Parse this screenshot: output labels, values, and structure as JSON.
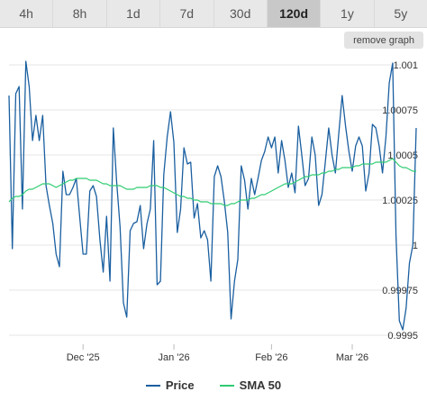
{
  "tabs": [
    {
      "label": "4h",
      "active": false
    },
    {
      "label": "8h",
      "active": false
    },
    {
      "label": "1d",
      "active": false
    },
    {
      "label": "7d",
      "active": false
    },
    {
      "label": "30d",
      "active": false
    },
    {
      "label": "120d",
      "active": true
    },
    {
      "label": "1y",
      "active": false
    },
    {
      "label": "5y",
      "active": false
    }
  ],
  "remove_graph_label": "remove graph",
  "colors": {
    "price": "#1a5fa0",
    "sma": "#2ecc71",
    "grid": "#e6e6e6",
    "active_tab": "#c8c8c8"
  },
  "chart_data": {
    "type": "line",
    "x_tick_labels": [
      "Dec '25",
      "Jan '26",
      "Feb '26",
      "Mar '26"
    ],
    "x_ticks_index": [
      22,
      49,
      78,
      102
    ],
    "y_tick_labels": [
      "1.001",
      "1.00075",
      "1.0005",
      "1.00025",
      "1",
      "0.99975",
      "0.9995"
    ],
    "y_ticks": [
      1.001,
      1.00075,
      1.0005,
      1.00025,
      1.0,
      0.99975,
      0.9995
    ],
    "ylim": [
      0.99945,
      1.00105
    ],
    "grid": true,
    "legend": "bottom",
    "series": [
      {
        "name": "Price",
        "values": [
          1.00083,
          0.99998,
          1.00084,
          1.00088,
          1.0002,
          1.00102,
          1.00088,
          1.00058,
          1.00072,
          1.00058,
          1.00072,
          1.00033,
          1.00022,
          1.00012,
          0.99995,
          0.99988,
          1.00041,
          1.00028,
          1.00028,
          1.00032,
          1.00037,
          1.00016,
          0.99995,
          0.99995,
          1.0003,
          1.00033,
          1.00027,
          1.00003,
          0.99985,
          1.00016,
          0.9998,
          1.00065,
          1.00035,
          1.0001,
          0.99968,
          0.9996,
          1.00008,
          1.00012,
          1.00013,
          1.00022,
          0.99998,
          1.00012,
          1.0002,
          1.00058,
          0.99978,
          0.9998,
          1.00039,
          1.0006,
          1.00074,
          1.00057,
          1.00007,
          1.0002,
          1.00054,
          1.00045,
          1.00046,
          1.00015,
          1.00023,
          1.00004,
          1.00008,
          1.00003,
          0.9998,
          1.00038,
          1.00044,
          1.00038,
          1.00024,
          1.00007,
          0.99959,
          0.9998,
          0.99992,
          1.00044,
          1.00036,
          1.0002,
          1.00037,
          1.00028,
          1.00037,
          1.00047,
          1.00052,
          1.0006,
          1.00054,
          1.0006,
          1.0004,
          1.00058,
          1.00047,
          1.00032,
          1.0004,
          1.00029,
          1.00066,
          1.0005,
          1.00033,
          1.00037,
          1.0006,
          1.0005,
          1.00022,
          1.00028,
          1.00046,
          1.00065,
          1.0005,
          1.0004,
          1.00062,
          1.00083,
          1.00066,
          1.00052,
          1.00041,
          1.00055,
          1.0006,
          1.00055,
          1.0003,
          1.0004,
          1.00067,
          1.00065,
          1.00055,
          1.0004,
          1.0006,
          1.0009,
          1.00101,
          1.00005,
          0.99958,
          0.99953,
          0.99965,
          0.9999,
          1.0,
          1.00065
        ]
      },
      {
        "name": "SMA 50",
        "values": [
          1.00024,
          1.00026,
          1.00027,
          1.00027,
          1.00028,
          1.0003,
          1.00031,
          1.00031,
          1.00032,
          1.00033,
          1.00034,
          1.00034,
          1.00034,
          1.00033,
          1.00032,
          1.00033,
          1.00034,
          1.00035,
          1.00036,
          1.00036,
          1.00037,
          1.00037,
          1.00037,
          1.00037,
          1.00036,
          1.00036,
          1.00036,
          1.00035,
          1.00034,
          1.00034,
          1.00033,
          1.00033,
          1.00033,
          1.00033,
          1.00032,
          1.00031,
          1.00031,
          1.00031,
          1.00032,
          1.00032,
          1.00032,
          1.00032,
          1.00033,
          1.00033,
          1.00033,
          1.00032,
          1.00032,
          1.00031,
          1.0003,
          1.00029,
          1.00028,
          1.00027,
          1.00027,
          1.00026,
          1.00026,
          1.00025,
          1.00025,
          1.00024,
          1.00024,
          1.00024,
          1.00023,
          1.00023,
          1.00023,
          1.00023,
          1.00022,
          1.00022,
          1.00023,
          1.00023,
          1.00024,
          1.00025,
          1.00025,
          1.00025,
          1.00026,
          1.00026,
          1.00027,
          1.00028,
          1.00028,
          1.00029,
          1.0003,
          1.00031,
          1.00032,
          1.00033,
          1.00034,
          1.00034,
          1.00034,
          1.00035,
          1.00036,
          1.00037,
          1.00038,
          1.00038,
          1.00039,
          1.00039,
          1.00039,
          1.0004,
          1.0004,
          1.00041,
          1.00041,
          1.00042,
          1.00042,
          1.00043,
          1.00043,
          1.00043,
          1.00043,
          1.00044,
          1.00044,
          1.00045,
          1.00045,
          1.00045,
          1.00045,
          1.00046,
          1.00046,
          1.00046,
          1.00046,
          1.00047,
          1.00048,
          1.00046,
          1.00044,
          1.00043,
          1.00043,
          1.00042,
          1.00041,
          1.00041
        ]
      }
    ]
  }
}
